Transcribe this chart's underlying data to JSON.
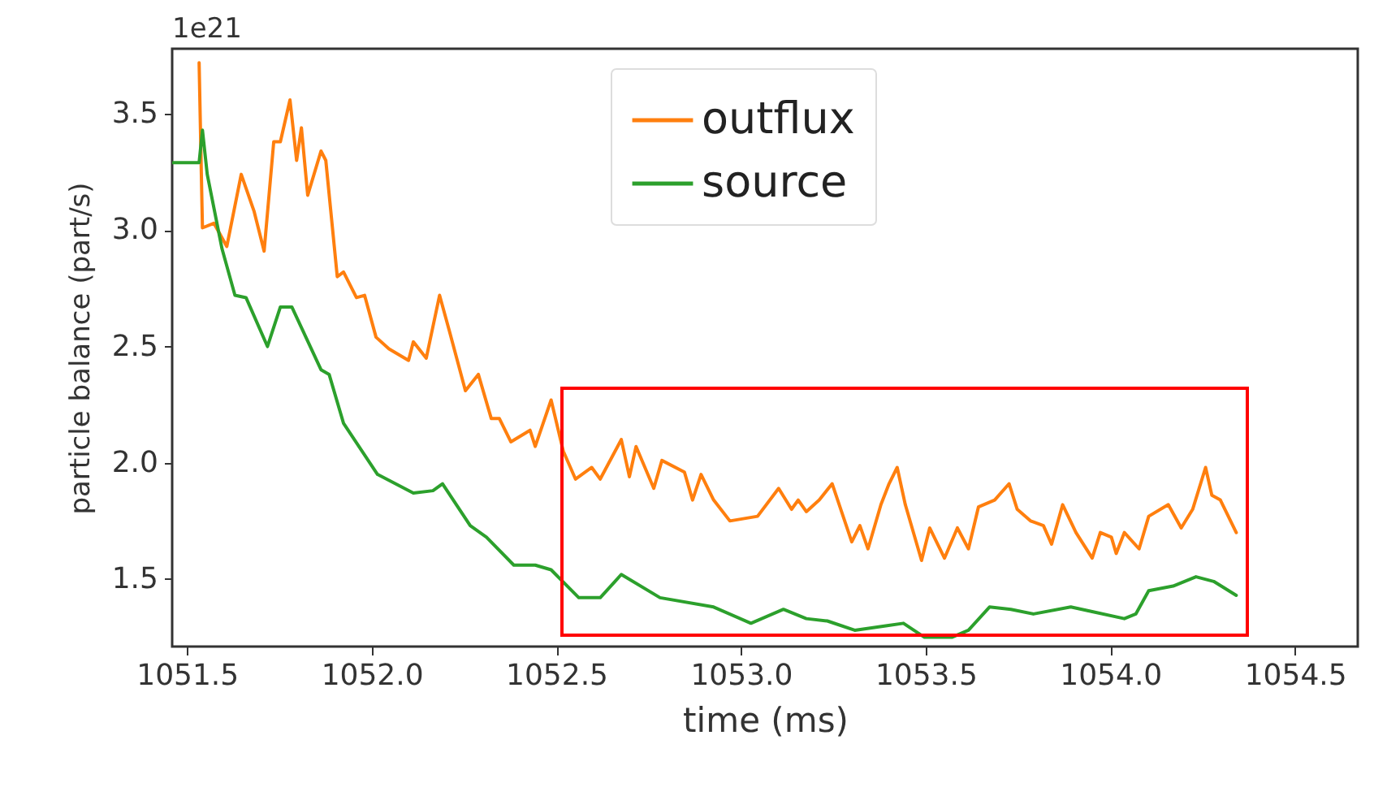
{
  "chart_data": {
    "type": "line",
    "xlabel": "time (ms)",
    "ylabel": "particle balance (part/s)",
    "annotations": [
      "1e21"
    ],
    "xlim": [
      1051.46,
      1054.67
    ],
    "ylim": [
      1.21,
      3.78
    ],
    "xticks": [
      1051.5,
      {
        "value": 1052,
        "label": "1052.0"
      },
      1052.5,
      {
        "value": 1053,
        "label": "1053.0"
      },
      1053.5,
      {
        "value": 1054,
        "label": "1054.0"
      },
      1054.5
    ],
    "yticks": [
      1.5,
      {
        "value": 2,
        "label": "2.0"
      },
      2.5,
      {
        "value": 3,
        "label": "3.0"
      },
      3.5
    ],
    "grid": false,
    "legend": "top",
    "line_style": "solid",
    "series": [
      {
        "name": "outflux",
        "color": "#ff7f0e",
        "x": [
          1051.533,
          1051.542,
          1051.573,
          1051.608,
          1051.647,
          1051.682,
          1051.709,
          1051.735,
          1051.753,
          1051.779,
          1051.797,
          1051.81,
          1051.827,
          1051.863,
          1051.876,
          1051.907,
          1051.924,
          1051.959,
          1051.981,
          1052.012,
          1052.047,
          1052.1,
          1052.113,
          1052.148,
          1052.184,
          1052.21,
          1052.254,
          1052.289,
          1052.324,
          1052.346,
          1052.377,
          1052.429,
          1052.443,
          1052.486,
          1052.519,
          1052.552,
          1052.596,
          1052.619,
          1052.676,
          1052.698,
          1052.716,
          1052.764,
          1052.786,
          1052.847,
          1052.869,
          1052.892,
          1052.926,
          1052.97,
          1053.045,
          1053.102,
          1053.137,
          1053.155,
          1053.177,
          1053.212,
          1053.247,
          1053.3,
          1053.322,
          1053.344,
          1053.379,
          1053.401,
          1053.423,
          1053.445,
          1053.489,
          1053.511,
          1053.551,
          1053.586,
          1053.616,
          1053.643,
          1053.687,
          1053.726,
          1053.748,
          1053.784,
          1053.819,
          1053.841,
          1053.871,
          1053.907,
          1053.951,
          1053.973,
          1054.003,
          1054.016,
          1054.038,
          1054.078,
          1054.104,
          1054.157,
          1054.192,
          1054.223,
          1054.258,
          1054.275,
          1054.298,
          1054.341
        ],
        "values": [
          3.72,
          3.01,
          3.03,
          2.93,
          3.24,
          3.08,
          2.91,
          3.38,
          3.38,
          3.56,
          3.3,
          3.44,
          3.15,
          3.34,
          3.3,
          2.8,
          2.82,
          2.71,
          2.72,
          2.54,
          2.49,
          2.44,
          2.52,
          2.45,
          2.72,
          2.57,
          2.31,
          2.38,
          2.19,
          2.19,
          2.09,
          2.14,
          2.07,
          2.27,
          2.05,
          1.93,
          1.98,
          1.93,
          2.1,
          1.94,
          2.07,
          1.89,
          2.01,
          1.96,
          1.84,
          1.95,
          1.84,
          1.75,
          1.77,
          1.89,
          1.8,
          1.84,
          1.79,
          1.84,
          1.91,
          1.66,
          1.73,
          1.63,
          1.82,
          1.91,
          1.98,
          1.82,
          1.58,
          1.72,
          1.59,
          1.72,
          1.63,
          1.81,
          1.84,
          1.91,
          1.8,
          1.75,
          1.73,
          1.65,
          1.82,
          1.7,
          1.59,
          1.7,
          1.68,
          1.61,
          1.7,
          1.63,
          1.77,
          1.82,
          1.72,
          1.8,
          1.98,
          1.86,
          1.84,
          1.7
        ]
      },
      {
        "name": "source",
        "color": "#2ca02c",
        "x": [
          1051.463,
          1051.533,
          1051.542,
          1051.555,
          1051.595,
          1051.63,
          1051.66,
          1051.718,
          1051.753,
          1051.784,
          1051.863,
          1051.885,
          1051.924,
          1052.016,
          1052.113,
          1052.166,
          1052.192,
          1052.267,
          1052.311,
          1052.385,
          1052.443,
          1052.486,
          1052.561,
          1052.619,
          1052.676,
          1052.781,
          1052.926,
          1053.027,
          1053.115,
          1053.177,
          1053.234,
          1053.308,
          1053.396,
          1053.44,
          1053.497,
          1053.571,
          1053.616,
          1053.673,
          1053.731,
          1053.792,
          1053.893,
          1053.951,
          1054.038,
          1054.069,
          1054.104,
          1054.17,
          1054.232,
          1054.28,
          1054.341
        ],
        "values": [
          3.29,
          3.29,
          3.43,
          3.24,
          2.92,
          2.72,
          2.71,
          2.5,
          2.67,
          2.67,
          2.4,
          2.38,
          2.17,
          1.95,
          1.87,
          1.88,
          1.91,
          1.73,
          1.68,
          1.56,
          1.56,
          1.54,
          1.42,
          1.42,
          1.52,
          1.42,
          1.38,
          1.31,
          1.37,
          1.33,
          1.32,
          1.28,
          1.3,
          1.31,
          1.25,
          1.25,
          1.28,
          1.38,
          1.37,
          1.35,
          1.38,
          1.36,
          1.33,
          1.35,
          1.45,
          1.47,
          1.51,
          1.49,
          1.43
        ]
      }
    ]
  }
}
